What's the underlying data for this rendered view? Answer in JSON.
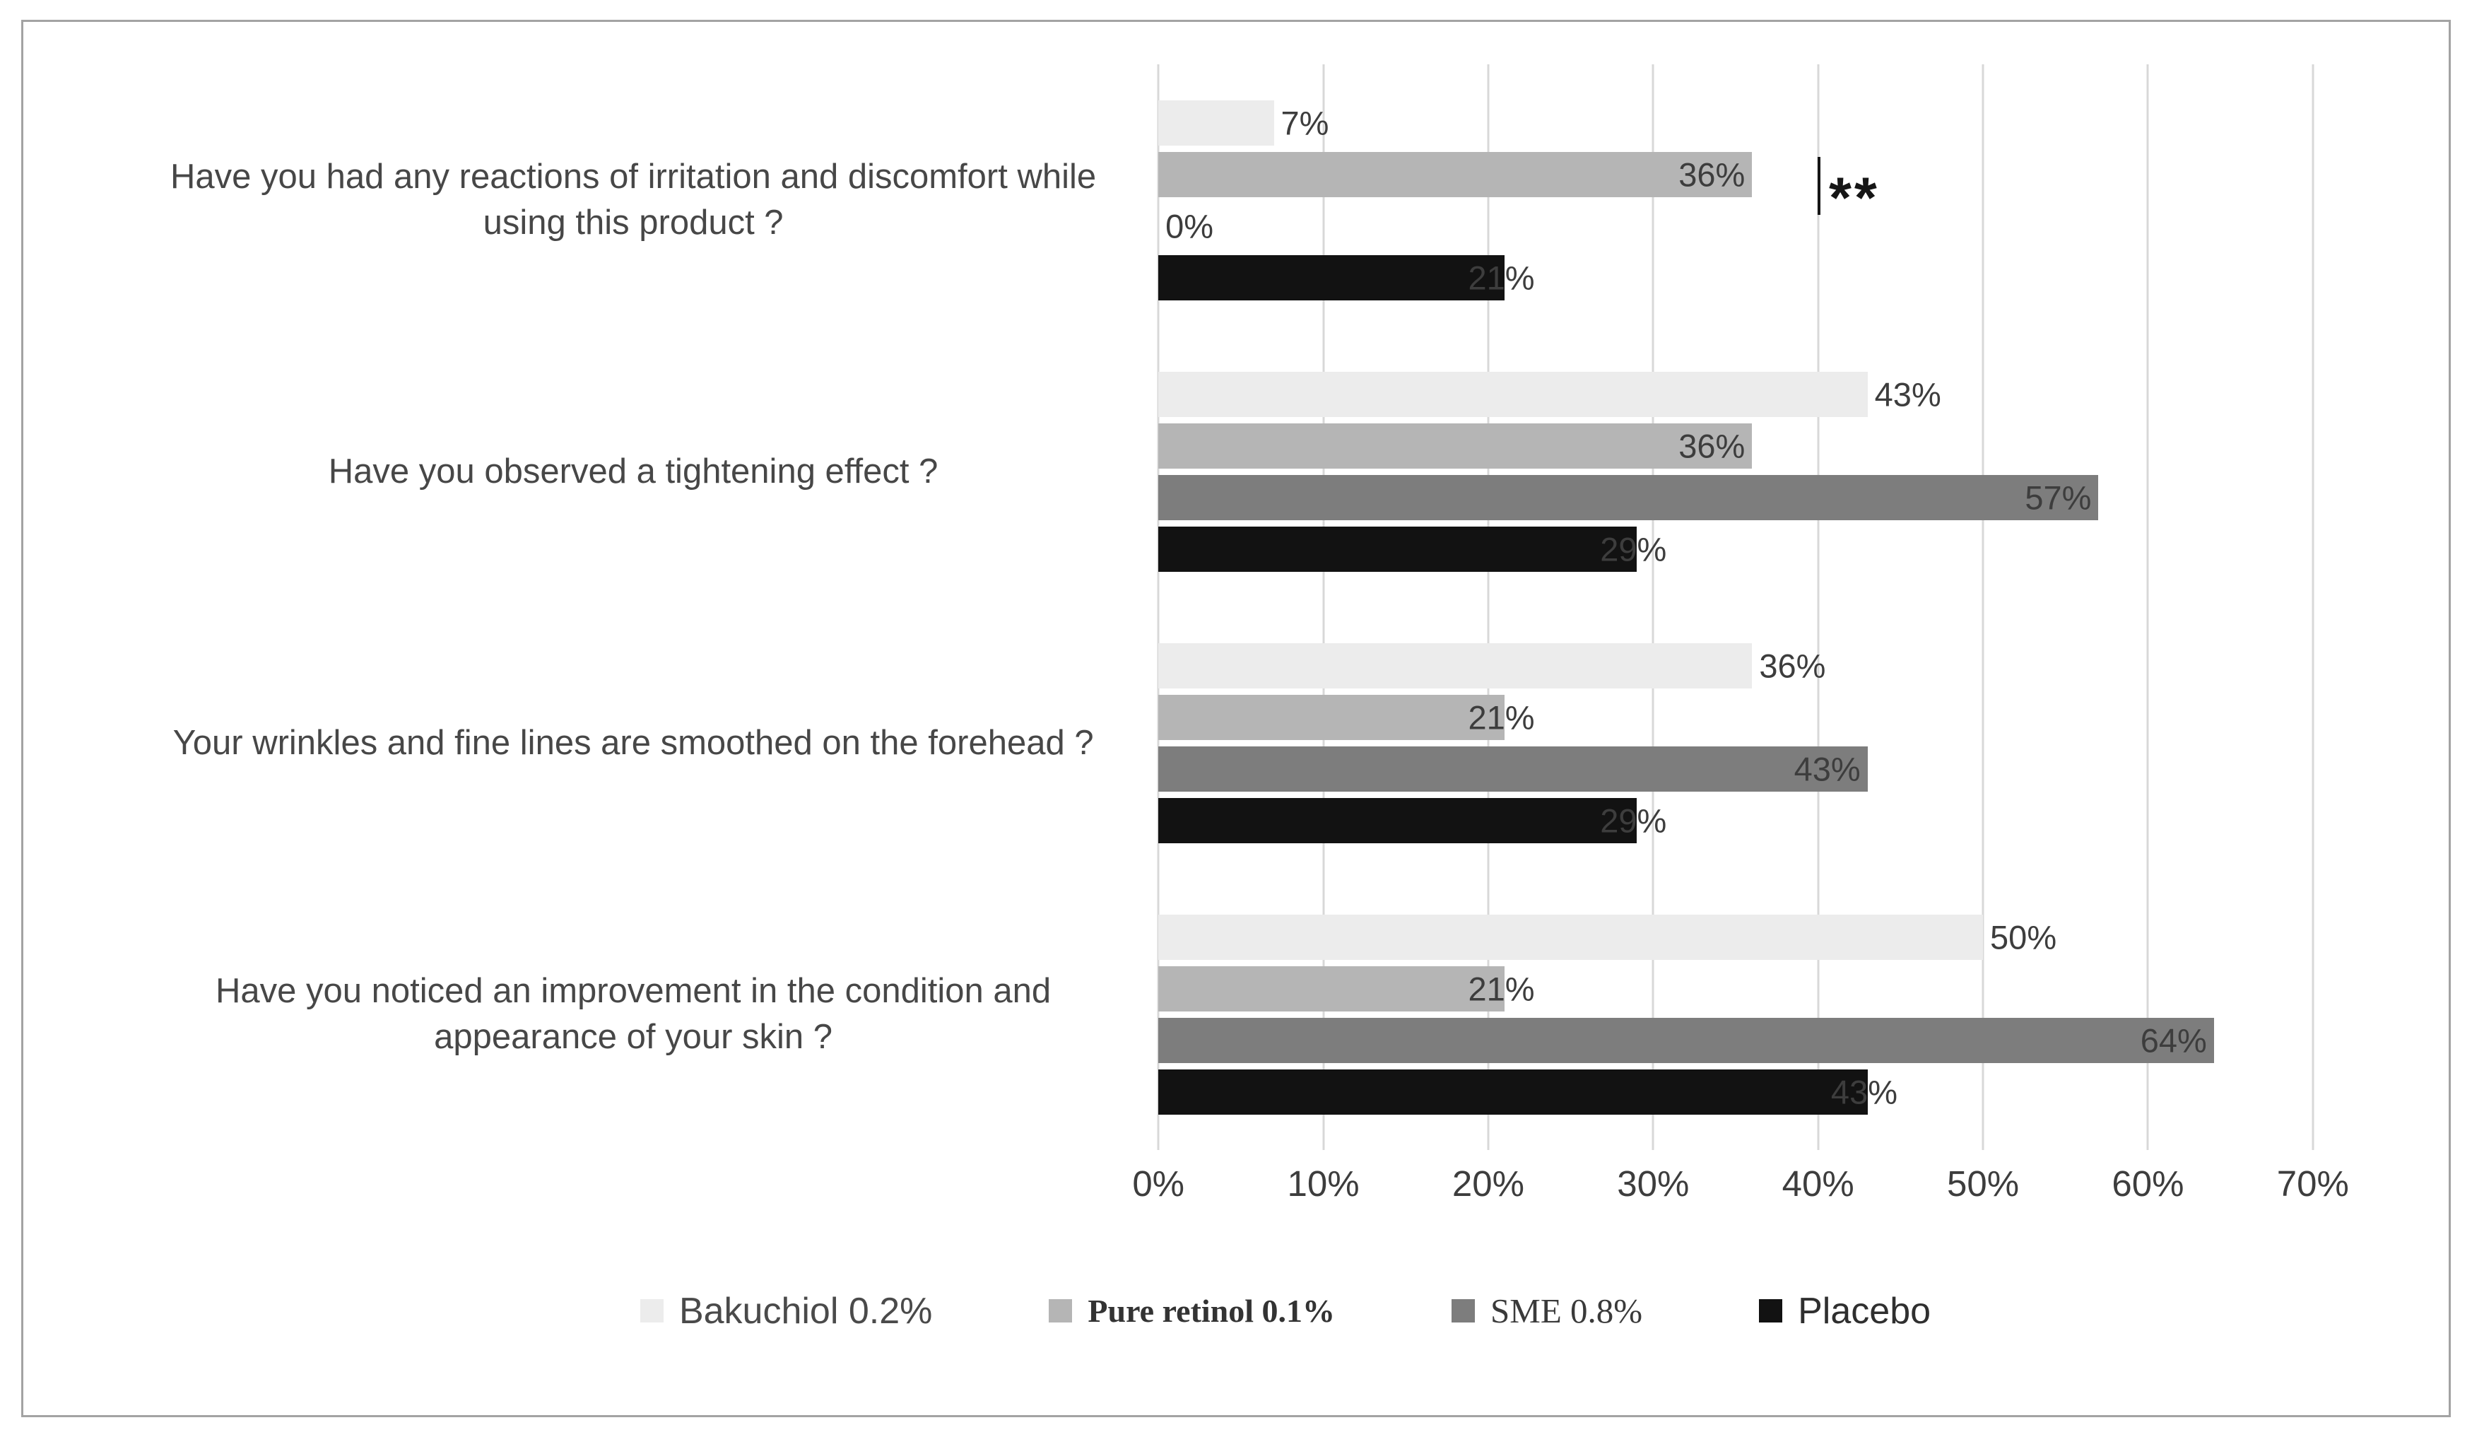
{
  "chart_data": {
    "type": "bar",
    "orientation": "horizontal",
    "title": "",
    "xlabel": "",
    "ylabel": "",
    "grid": "vertical",
    "legend_position": "bottom",
    "xlim": [
      0,
      70
    ],
    "xticks": [
      "0%",
      "10%",
      "20%",
      "30%",
      "40%",
      "50%",
      "60%",
      "70%"
    ],
    "value_suffix": "%",
    "categories": [
      "Have you had any reactions of irritation and discomfort while using this product ?",
      "Have you observed a tightening effect ?",
      "Your wrinkles and fine lines are smoothed on the forehead ?",
      "Have you noticed an improvement in the condition and appearance of your skin ?"
    ],
    "series": [
      {
        "name": "Bakuchiol 0.2%",
        "color": "#ececec",
        "values": [
          7,
          43,
          36,
          50
        ],
        "label_pos": [
          "out",
          "out",
          "out",
          "out"
        ]
      },
      {
        "name": "Pure retinol 0.1%",
        "color": "#b5b5b5",
        "values": [
          36,
          36,
          21,
          21
        ],
        "label_pos": [
          "in",
          "in",
          "straddle",
          "straddle"
        ]
      },
      {
        "name": "SME 0.8%",
        "color": "#7d7d7d",
        "values": [
          0,
          57,
          43,
          64
        ],
        "label_pos": [
          "out",
          "in",
          "in",
          "in"
        ]
      },
      {
        "name": "Placebo",
        "color": "#121212",
        "values": [
          21,
          29,
          29,
          43
        ],
        "label_pos": [
          "straddle",
          "straddle",
          "straddle",
          "straddle"
        ]
      }
    ],
    "annotation": {
      "text": "**",
      "marker_line": "|",
      "x_value": 40,
      "category_index": 0,
      "meaning": "significance marker next to first question group"
    }
  }
}
